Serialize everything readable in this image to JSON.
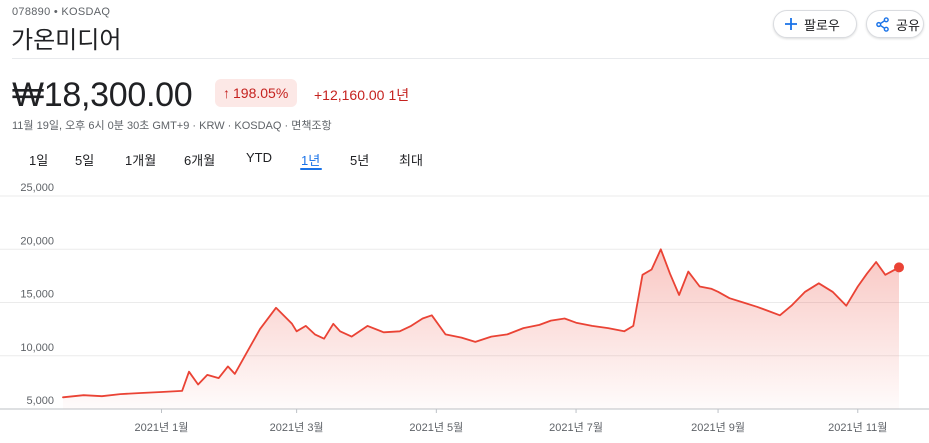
{
  "header": {
    "ticker": "078890 • KOSDAQ",
    "name": "가온미디어",
    "follow_label": "팔로우",
    "share_label": "공유"
  },
  "quote": {
    "price": "₩18,300.00",
    "change_percent": "198.05%",
    "change_abs": "+12,160.00",
    "period": "1년",
    "meta": "11월 19일, 오후 6시 0분 30초 GMT+9 · KRW · KOSDAQ · 면책조항"
  },
  "tabs": [
    "1일",
    "5일",
    "1개월",
    "6개월",
    "YTD",
    "1년",
    "5년",
    "최대"
  ],
  "active_tab": "1년",
  "colors": {
    "line": "#ea4335",
    "up": "#c5221f",
    "accent": "#1a73e8"
  },
  "icons": {
    "follow": "plus-icon",
    "share": "share-icon",
    "change": "arrow-up-icon"
  },
  "chart_data": {
    "type": "area",
    "ylim": [
      5000,
      25000
    ],
    "yticks": [
      5000,
      10000,
      15000,
      20000,
      25000
    ],
    "ytick_labels": [
      "5,000",
      "10,000",
      "15,000",
      "20,000",
      "25,000"
    ],
    "xlim": [
      "2020-11-19",
      "2021-11-19"
    ],
    "xticks": [
      {
        "date": "2021-01-01",
        "label": "2021년 1월"
      },
      {
        "date": "2021-03-01",
        "label": "2021년 3월"
      },
      {
        "date": "2021-05-01",
        "label": "2021년 5월"
      },
      {
        "date": "2021-07-01",
        "label": "2021년 7월"
      },
      {
        "date": "2021-09-01",
        "label": "2021년 9월"
      },
      {
        "date": "2021-11-01",
        "label": "2021년 11월"
      }
    ],
    "series": [
      {
        "x": [
          "2020-11-19",
          "2020-11-28",
          "2020-12-06",
          "2020-12-14",
          "2020-12-23",
          "2021-01-01",
          "2021-01-10",
          "2021-01-13",
          "2021-01-17",
          "2021-01-21",
          "2021-01-26",
          "2021-01-30",
          "2021-02-02",
          "2021-02-07",
          "2021-02-13",
          "2021-02-20",
          "2021-02-27",
          "2021-03-01",
          "2021-03-05",
          "2021-03-09",
          "2021-03-13",
          "2021-03-17",
          "2021-03-20",
          "2021-03-25",
          "2021-04-01",
          "2021-04-08",
          "2021-04-15",
          "2021-04-20",
          "2021-04-25",
          "2021-04-29",
          "2021-05-05",
          "2021-05-12",
          "2021-05-18",
          "2021-05-25",
          "2021-06-01",
          "2021-06-08",
          "2021-06-15",
          "2021-06-20",
          "2021-06-26",
          "2021-07-01",
          "2021-07-08",
          "2021-07-15",
          "2021-07-22",
          "2021-07-26",
          "2021-07-30",
          "2021-08-03",
          "2021-08-07",
          "2021-08-11",
          "2021-08-15",
          "2021-08-19",
          "2021-08-24",
          "2021-08-29",
          "2021-09-01",
          "2021-09-06",
          "2021-09-12",
          "2021-09-18",
          "2021-09-23",
          "2021-09-28",
          "2021-10-03",
          "2021-10-09",
          "2021-10-15",
          "2021-10-21",
          "2021-10-27",
          "2021-11-01",
          "2021-11-05",
          "2021-11-09",
          "2021-11-13",
          "2021-11-19"
        ],
        "values": [
          6100,
          6300,
          6200,
          6400,
          6500,
          6600,
          6700,
          8500,
          7300,
          8200,
          7900,
          9000,
          8300,
          10200,
          12500,
          14500,
          13000,
          12300,
          12800,
          12000,
          11600,
          13000,
          12300,
          11800,
          12800,
          12200,
          12300,
          12800,
          13500,
          13800,
          12000,
          11700,
          11300,
          11800,
          12000,
          12600,
          12900,
          13300,
          13500,
          13100,
          12800,
          12600,
          12300,
          12800,
          17600,
          18100,
          20000,
          17700,
          15700,
          17900,
          16500,
          16300,
          16000,
          15400,
          15000,
          14600,
          14200,
          13800,
          14700,
          16000,
          16800,
          16000,
          14700,
          16500,
          17700,
          18800,
          17600,
          18300
        ]
      }
    ]
  }
}
